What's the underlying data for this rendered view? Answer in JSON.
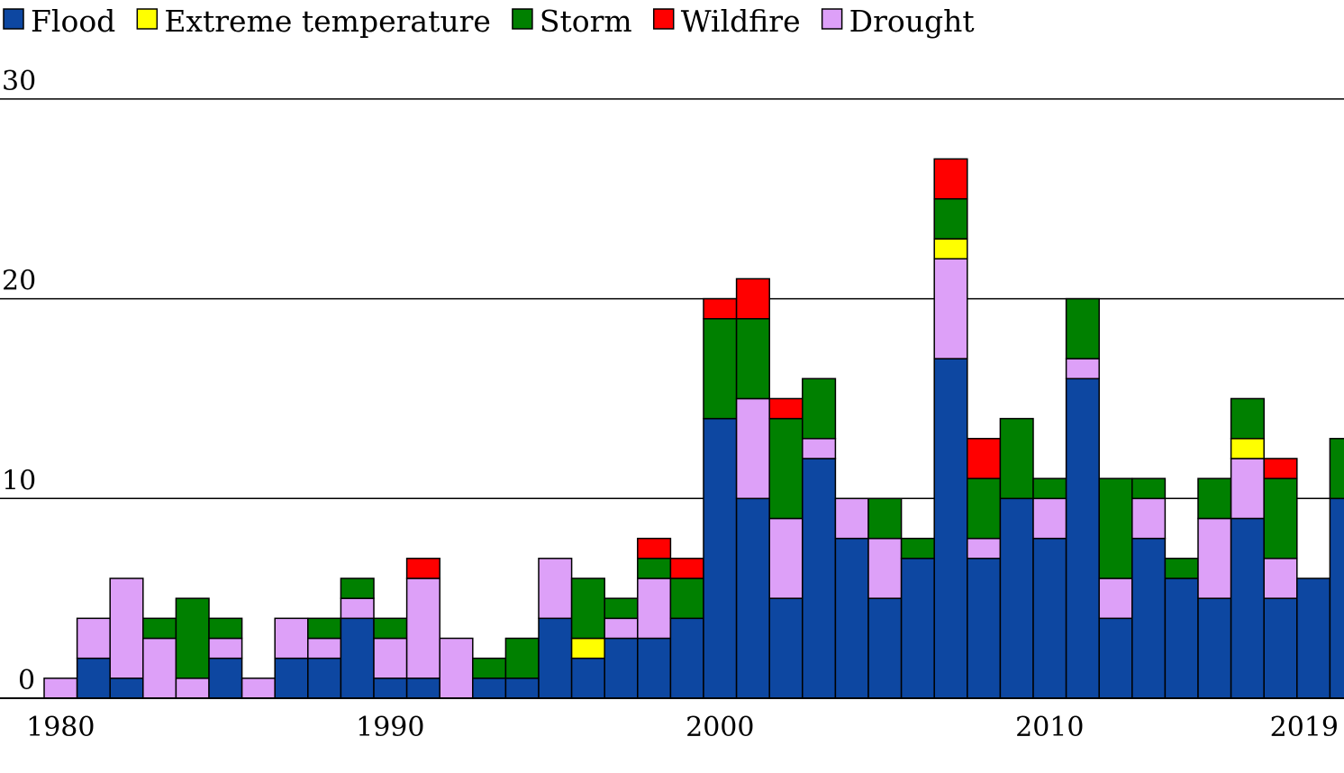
{
  "chart_data": {
    "type": "bar",
    "stacked": true,
    "title": "",
    "xlabel": "",
    "ylabel": "",
    "ylim": [
      0,
      30
    ],
    "yticks": [
      0,
      10,
      20,
      30
    ],
    "grid": true,
    "legend_position": "top-left",
    "categories": [
      1980,
      1981,
      1982,
      1983,
      1984,
      1985,
      1986,
      1987,
      1988,
      1989,
      1990,
      1991,
      1992,
      1993,
      1994,
      1995,
      1996,
      1997,
      1998,
      1999,
      2000,
      2001,
      2002,
      2003,
      2004,
      2005,
      2006,
      2007,
      2008,
      2009,
      2010,
      2011,
      2012,
      2013,
      2014,
      2015,
      2016,
      2017,
      2018,
      2019
    ],
    "xtick_labels": [
      {
        "year": 1980,
        "label": "1980"
      },
      {
        "year": 1990,
        "label": "1990"
      },
      {
        "year": 2000,
        "label": "2000"
      },
      {
        "year": 2010,
        "label": "2010"
      },
      {
        "year": 2019,
        "label": "2019"
      }
    ],
    "series": [
      {
        "name": "Flood",
        "color": "#0d47a1",
        "values": [
          0,
          2,
          1,
          0,
          0,
          2,
          0,
          2,
          2,
          4,
          1,
          1,
          0,
          1,
          1,
          4,
          2,
          3,
          3,
          4,
          14,
          10,
          5,
          12,
          8,
          5,
          7,
          17,
          7,
          10,
          8,
          16,
          4,
          8,
          6,
          5,
          9,
          5,
          6,
          10
        ]
      },
      {
        "name": "Extreme temperature",
        "color": "#ffff00",
        "values": [
          0,
          0,
          0,
          0,
          0,
          0,
          0,
          0,
          0,
          0,
          0,
          0,
          0,
          0,
          0,
          0,
          1,
          0,
          0,
          0,
          0,
          0,
          0,
          0,
          0,
          0,
          0,
          1,
          0,
          0,
          0,
          0,
          0,
          0,
          0,
          0,
          1,
          0,
          0,
          0
        ]
      },
      {
        "name": "Storm",
        "color": "#008000",
        "values": [
          0,
          0,
          0,
          1,
          4,
          1,
          0,
          0,
          1,
          1,
          1,
          0,
          0,
          1,
          2,
          0,
          3,
          1,
          1,
          2,
          5,
          4,
          5,
          3,
          0,
          2,
          1,
          2,
          3,
          4,
          1,
          3,
          5,
          1,
          1,
          2,
          2,
          4,
          0,
          3
        ]
      },
      {
        "name": "Wildfire",
        "color": "#ff0000",
        "values": [
          0,
          0,
          0,
          0,
          0,
          0,
          0,
          0,
          0,
          0,
          0,
          1,
          0,
          0,
          0,
          0,
          0,
          0,
          1,
          1,
          1,
          2,
          1,
          0,
          0,
          0,
          0,
          2,
          2,
          0,
          0,
          0,
          0,
          0,
          0,
          0,
          0,
          1,
          0,
          0
        ]
      },
      {
        "name": "Drought",
        "color": "#dda0f8",
        "values": [
          1,
          2,
          5,
          3,
          1,
          1,
          1,
          2,
          1,
          1,
          2,
          5,
          3,
          0,
          0,
          3,
          0,
          1,
          3,
          0,
          0,
          5,
          4,
          1,
          2,
          3,
          0,
          5,
          1,
          0,
          2,
          1,
          2,
          2,
          0,
          4,
          3,
          2,
          0,
          0
        ]
      }
    ],
    "stack_order": [
      "Flood",
      "Drought",
      "Extreme temperature",
      "Storm",
      "Wildfire"
    ],
    "legend_order": [
      "Flood",
      "Extreme temperature",
      "Storm",
      "Wildfire",
      "Drought"
    ]
  }
}
